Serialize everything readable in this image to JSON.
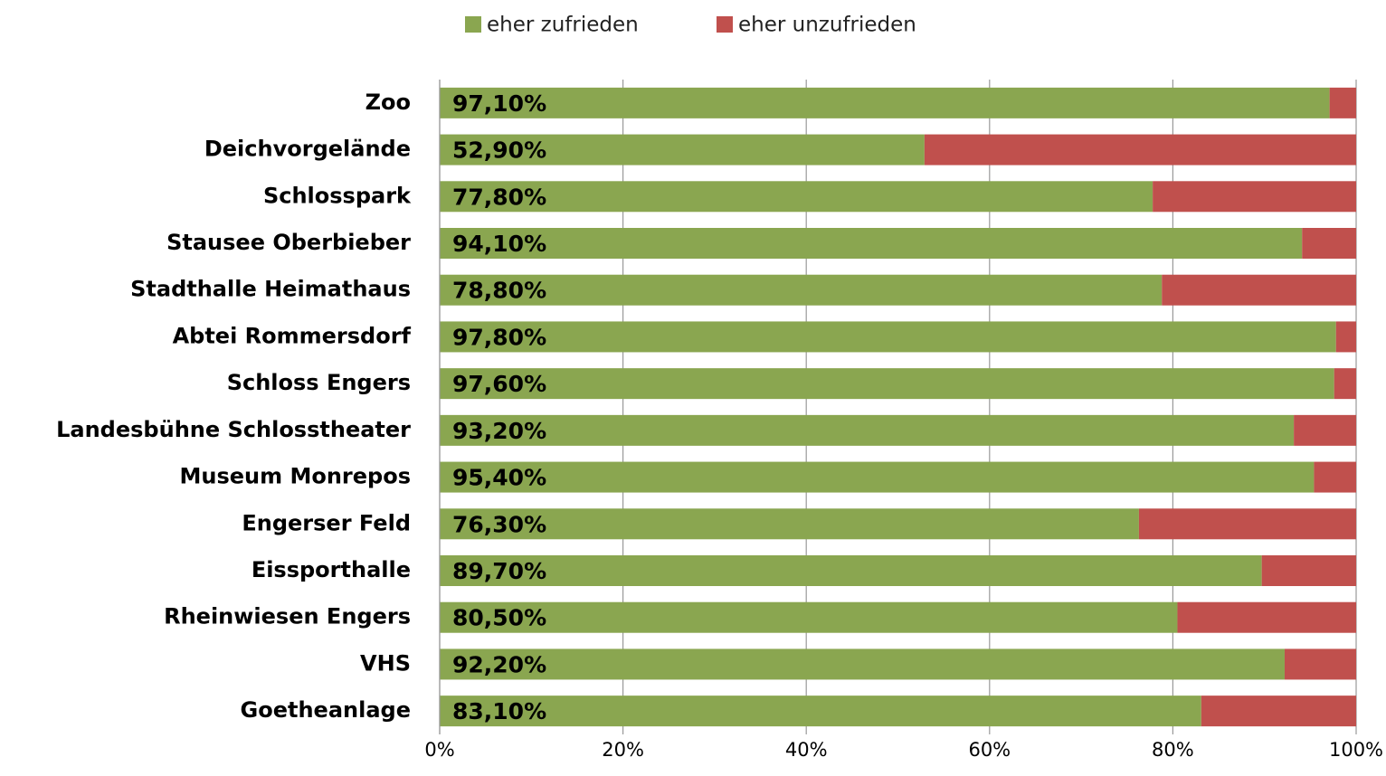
{
  "chart_data": {
    "type": "stacked-bar-horizontal",
    "categories": [
      "Zoo",
      "Deichvorgelände",
      "Schlosspark",
      "Stausee Oberbieber",
      "Stadthalle Heimathaus",
      "Abtei Rommersdorf",
      "Schloss Engers",
      "Landesbühne Schlosstheater",
      "Museum Monrepos",
      "Engerser Feld",
      "Eissporthalle",
      "Rheinwiesen Engers",
      "VHS",
      "Goetheanlage"
    ],
    "series": [
      {
        "name": "eher zufrieden",
        "color": "#8aa650",
        "values": [
          97.1,
          52.9,
          77.8,
          94.1,
          78.8,
          97.8,
          97.6,
          93.2,
          95.4,
          76.3,
          89.7,
          80.5,
          92.2,
          83.1
        ],
        "value_labels": [
          "97,10%",
          "52,90%",
          "77,80%",
          "94,10%",
          "78,80%",
          "97,80%",
          "97,60%",
          "93,20%",
          "95,40%",
          "76,30%",
          "89,70%",
          "80,50%",
          "92,20%",
          "83,10%"
        ]
      },
      {
        "name": "eher unzufrieden",
        "color": "#c0504d",
        "values": [
          2.9,
          47.1,
          22.2,
          5.9,
          21.2,
          2.2,
          2.4,
          6.8,
          4.6,
          23.7,
          10.3,
          19.5,
          7.8,
          16.9
        ]
      }
    ],
    "xlim": [
      0,
      100
    ],
    "xticks": [
      {
        "value": 0,
        "label": "0%"
      },
      {
        "value": 20,
        "label": "20%"
      },
      {
        "value": 40,
        "label": "40%"
      },
      {
        "value": 60,
        "label": "60%"
      },
      {
        "value": 80,
        "label": "80%"
      },
      {
        "value": 100,
        "label": "100%"
      }
    ],
    "grid": true,
    "legend": "top"
  }
}
